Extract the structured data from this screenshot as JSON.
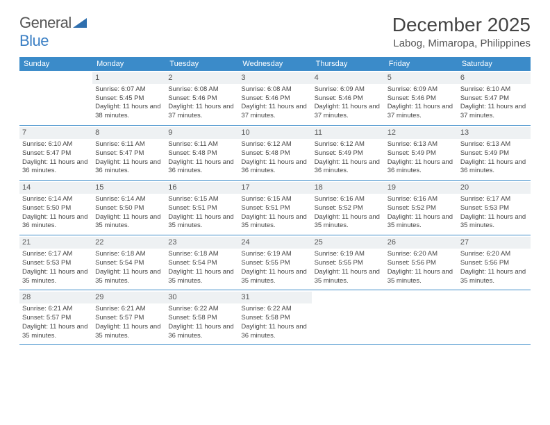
{
  "logo": {
    "text_general": "General",
    "text_blue": "Blue"
  },
  "title": "December 2025",
  "location": "Labog, Mimaropa, Philippines",
  "day_headers": [
    "Sunday",
    "Monday",
    "Tuesday",
    "Wednesday",
    "Thursday",
    "Friday",
    "Saturday"
  ],
  "colors": {
    "header_bg": "#3b8bc9",
    "header_text": "#ffffff",
    "daynum_bg": "#eef1f3",
    "border": "#3b8bc9",
    "body_text": "#444444",
    "logo_gray": "#555555",
    "logo_blue": "#3b7fc4"
  },
  "fonts": {
    "title_size_pt": 21,
    "location_size_pt": 11,
    "dayhead_size_pt": 8,
    "cell_size_pt": 7
  },
  "first_weekday_offset": 1,
  "days": [
    {
      "n": 1,
      "sunrise": "6:07 AM",
      "sunset": "5:45 PM",
      "daylight": "11 hours and 38 minutes."
    },
    {
      "n": 2,
      "sunrise": "6:08 AM",
      "sunset": "5:46 PM",
      "daylight": "11 hours and 37 minutes."
    },
    {
      "n": 3,
      "sunrise": "6:08 AM",
      "sunset": "5:46 PM",
      "daylight": "11 hours and 37 minutes."
    },
    {
      "n": 4,
      "sunrise": "6:09 AM",
      "sunset": "5:46 PM",
      "daylight": "11 hours and 37 minutes."
    },
    {
      "n": 5,
      "sunrise": "6:09 AM",
      "sunset": "5:46 PM",
      "daylight": "11 hours and 37 minutes."
    },
    {
      "n": 6,
      "sunrise": "6:10 AM",
      "sunset": "5:47 PM",
      "daylight": "11 hours and 37 minutes."
    },
    {
      "n": 7,
      "sunrise": "6:10 AM",
      "sunset": "5:47 PM",
      "daylight": "11 hours and 36 minutes."
    },
    {
      "n": 8,
      "sunrise": "6:11 AM",
      "sunset": "5:47 PM",
      "daylight": "11 hours and 36 minutes."
    },
    {
      "n": 9,
      "sunrise": "6:11 AM",
      "sunset": "5:48 PM",
      "daylight": "11 hours and 36 minutes."
    },
    {
      "n": 10,
      "sunrise": "6:12 AM",
      "sunset": "5:48 PM",
      "daylight": "11 hours and 36 minutes."
    },
    {
      "n": 11,
      "sunrise": "6:12 AM",
      "sunset": "5:49 PM",
      "daylight": "11 hours and 36 minutes."
    },
    {
      "n": 12,
      "sunrise": "6:13 AM",
      "sunset": "5:49 PM",
      "daylight": "11 hours and 36 minutes."
    },
    {
      "n": 13,
      "sunrise": "6:13 AM",
      "sunset": "5:49 PM",
      "daylight": "11 hours and 36 minutes."
    },
    {
      "n": 14,
      "sunrise": "6:14 AM",
      "sunset": "5:50 PM",
      "daylight": "11 hours and 36 minutes."
    },
    {
      "n": 15,
      "sunrise": "6:14 AM",
      "sunset": "5:50 PM",
      "daylight": "11 hours and 35 minutes."
    },
    {
      "n": 16,
      "sunrise": "6:15 AM",
      "sunset": "5:51 PM",
      "daylight": "11 hours and 35 minutes."
    },
    {
      "n": 17,
      "sunrise": "6:15 AM",
      "sunset": "5:51 PM",
      "daylight": "11 hours and 35 minutes."
    },
    {
      "n": 18,
      "sunrise": "6:16 AM",
      "sunset": "5:52 PM",
      "daylight": "11 hours and 35 minutes."
    },
    {
      "n": 19,
      "sunrise": "6:16 AM",
      "sunset": "5:52 PM",
      "daylight": "11 hours and 35 minutes."
    },
    {
      "n": 20,
      "sunrise": "6:17 AM",
      "sunset": "5:53 PM",
      "daylight": "11 hours and 35 minutes."
    },
    {
      "n": 21,
      "sunrise": "6:17 AM",
      "sunset": "5:53 PM",
      "daylight": "11 hours and 35 minutes."
    },
    {
      "n": 22,
      "sunrise": "6:18 AM",
      "sunset": "5:54 PM",
      "daylight": "11 hours and 35 minutes."
    },
    {
      "n": 23,
      "sunrise": "6:18 AM",
      "sunset": "5:54 PM",
      "daylight": "11 hours and 35 minutes."
    },
    {
      "n": 24,
      "sunrise": "6:19 AM",
      "sunset": "5:55 PM",
      "daylight": "11 hours and 35 minutes."
    },
    {
      "n": 25,
      "sunrise": "6:19 AM",
      "sunset": "5:55 PM",
      "daylight": "11 hours and 35 minutes."
    },
    {
      "n": 26,
      "sunrise": "6:20 AM",
      "sunset": "5:56 PM",
      "daylight": "11 hours and 35 minutes."
    },
    {
      "n": 27,
      "sunrise": "6:20 AM",
      "sunset": "5:56 PM",
      "daylight": "11 hours and 35 minutes."
    },
    {
      "n": 28,
      "sunrise": "6:21 AM",
      "sunset": "5:57 PM",
      "daylight": "11 hours and 35 minutes."
    },
    {
      "n": 29,
      "sunrise": "6:21 AM",
      "sunset": "5:57 PM",
      "daylight": "11 hours and 35 minutes."
    },
    {
      "n": 30,
      "sunrise": "6:22 AM",
      "sunset": "5:58 PM",
      "daylight": "11 hours and 36 minutes."
    },
    {
      "n": 31,
      "sunrise": "6:22 AM",
      "sunset": "5:58 PM",
      "daylight": "11 hours and 36 minutes."
    }
  ],
  "labels": {
    "sunrise": "Sunrise:",
    "sunset": "Sunset:",
    "daylight": "Daylight:"
  }
}
